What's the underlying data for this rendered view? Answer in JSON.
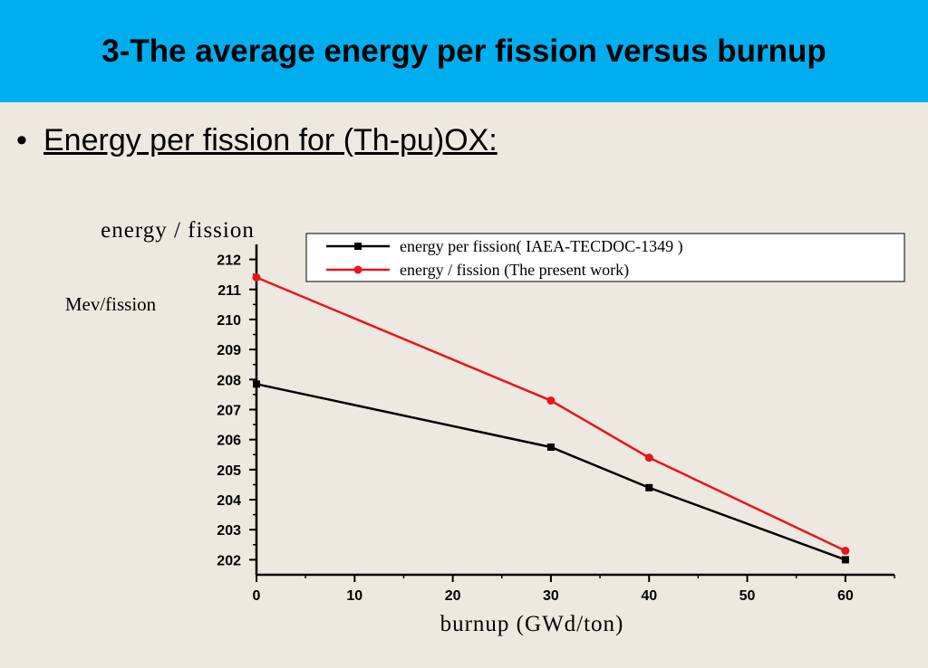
{
  "slide": {
    "title": "3-The average energy per fission versus burnup",
    "bullet": "Energy per fission for (Th-pu)OX:"
  },
  "chart_data": {
    "type": "line",
    "title": "",
    "ylabel_top": "energy / fission",
    "ylabel_unit": "Mev/fission",
    "xlabel": "burnup (GWd/ton)",
    "xlim": [
      0,
      65
    ],
    "ylim": [
      201.5,
      212.5
    ],
    "xticks": [
      0,
      10,
      20,
      30,
      40,
      50,
      60
    ],
    "yticks": [
      202,
      203,
      204,
      205,
      206,
      207,
      208,
      209,
      210,
      211,
      212
    ],
    "legend_position": "top-right",
    "series": [
      {
        "name": "energy per fission( IAEA-TECDOC-1349 )",
        "color": "#000000",
        "marker": "square",
        "x": [
          0,
          30,
          40,
          60
        ],
        "y": [
          207.85,
          205.75,
          204.4,
          202.0
        ]
      },
      {
        "name": "energy / fission (The present work)",
        "color": "#e8141a",
        "marker": "circle",
        "x": [
          0,
          30,
          40,
          60
        ],
        "y": [
          211.4,
          207.3,
          205.4,
          202.3
        ]
      }
    ]
  }
}
